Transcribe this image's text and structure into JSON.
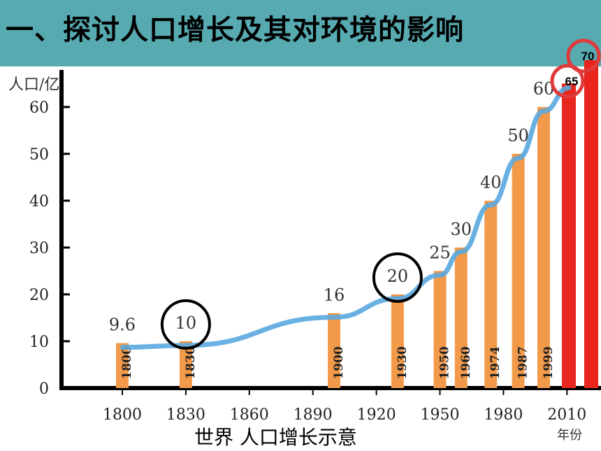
{
  "title": "一、探讨人口增长及其对环境的影响",
  "caption": "世界  人口增长示意",
  "colors": {
    "banner": "#56aab0",
    "bar": "#f39a4a",
    "bar_highlight": "#e8261e",
    "curve": "#5aa9e0",
    "circle_black": "#000000",
    "circle_red": "#e03a3a"
  },
  "chart_data": {
    "type": "bar",
    "ylabel": "人口/亿",
    "xlabel": "年份",
    "ylim": [
      0,
      65
    ],
    "yticks": [
      "0",
      "10",
      "20",
      "30",
      "40",
      "50",
      "60"
    ],
    "xticks": [
      "1800",
      "1830",
      "1860",
      "1890",
      "1920",
      "1950",
      "1980",
      "2010"
    ],
    "bars": [
      {
        "year": 1800,
        "year_label": "1800",
        "value": 9.6,
        "value_label": "9.6",
        "circled": false,
        "highlight": false
      },
      {
        "year": 1830,
        "year_label": "1830",
        "value": 10,
        "value_label": "10",
        "circled": true,
        "highlight": false
      },
      {
        "year": 1900,
        "year_label": "1900",
        "value": 16,
        "value_label": "16",
        "circled": false,
        "highlight": false
      },
      {
        "year": 1930,
        "year_label": "1930",
        "value": 20,
        "value_label": "20",
        "circled": true,
        "highlight": false
      },
      {
        "year": 1950,
        "year_label": "1950",
        "value": 25,
        "value_label": "25",
        "circled": false,
        "highlight": false
      },
      {
        "year": 1960,
        "year_label": "1960",
        "value": 30,
        "value_label": "30",
        "circled": false,
        "highlight": false
      },
      {
        "year": 1974,
        "year_label": "1974",
        "value": 40,
        "value_label": "40",
        "circled": false,
        "highlight": false
      },
      {
        "year": 1987,
        "year_label": "1987",
        "value": 50,
        "value_label": "50",
        "circled": false,
        "highlight": false
      },
      {
        "year": 1999,
        "year_label": "1999",
        "value": 60,
        "value_label": "60",
        "circled": false,
        "highlight": false
      },
      {
        "year": 2011,
        "year_label": "",
        "value": 65,
        "value_label": "65",
        "circled": true,
        "highlight": true
      },
      {
        "year": 2013,
        "year_label": "",
        "value": 70,
        "value_label": "70",
        "circled": true,
        "highlight": true
      }
    ]
  }
}
